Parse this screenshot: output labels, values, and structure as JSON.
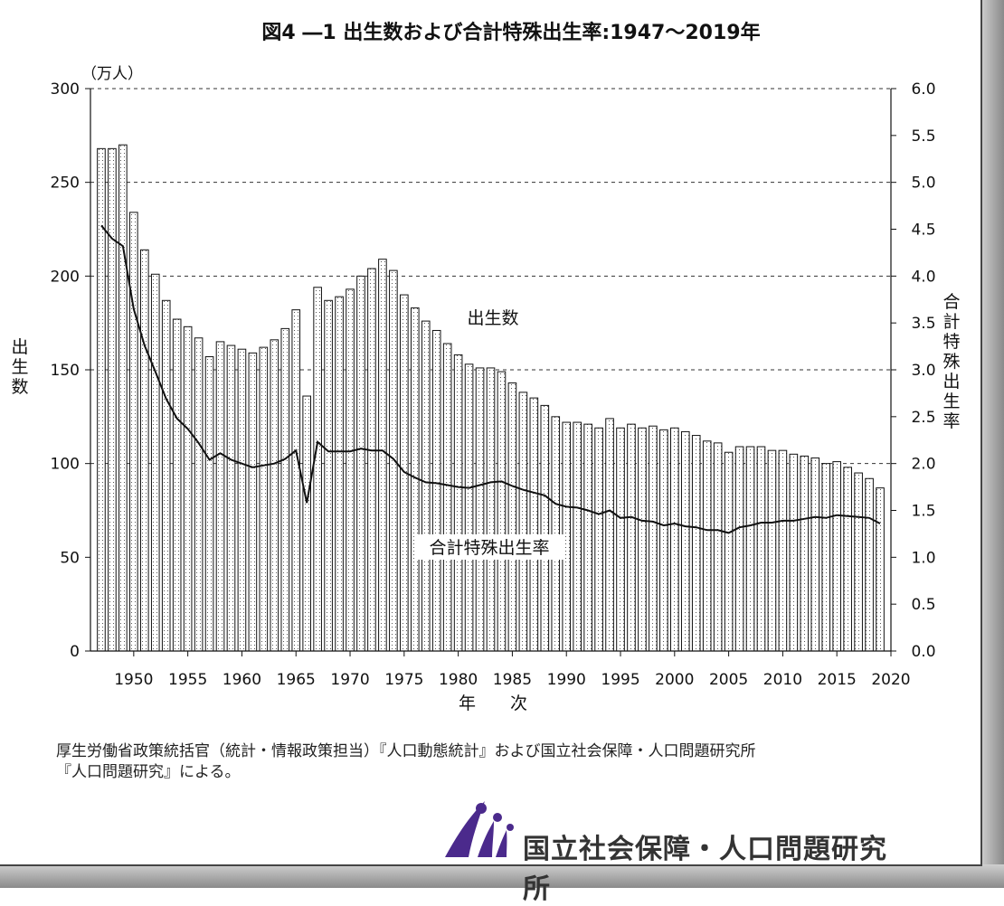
{
  "chart_data": {
    "type": "bar+line",
    "title": "図4 ―1 出生数および合計特殊出生率:1947～2019年",
    "unit_label": "（万人）",
    "ylabel_left": "出生数",
    "ylabel_right": "合計特殊出生率",
    "xlabel": "年　　次",
    "ylim_left": [
      0,
      300
    ],
    "ylim_right": [
      0,
      6.0
    ],
    "xlim": [
      1946,
      2020
    ],
    "left_ticks": [
      "0",
      "50",
      "100",
      "150",
      "200",
      "250",
      "300"
    ],
    "right_ticks": [
      "0.0",
      "0.5",
      "1.0",
      "1.5",
      "2.0",
      "2.5",
      "3.0",
      "3.5",
      "4.0",
      "4.5",
      "5.0",
      "5.5",
      "6.0"
    ],
    "x_ticks": [
      "1950",
      "1955",
      "1960",
      "1965",
      "1970",
      "1975",
      "1980",
      "1985",
      "1990",
      "1995",
      "2000",
      "2005",
      "2010",
      "2015",
      "2020"
    ],
    "grid": "dashed at 100, 150, 200, 250, 300",
    "annotations": {
      "births": "出生数",
      "tfr": "合計特殊出生率"
    },
    "years": [
      1947,
      1948,
      1949,
      1950,
      1951,
      1952,
      1953,
      1954,
      1955,
      1956,
      1957,
      1958,
      1959,
      1960,
      1961,
      1962,
      1963,
      1964,
      1965,
      1966,
      1967,
      1968,
      1969,
      1970,
      1971,
      1972,
      1973,
      1974,
      1975,
      1976,
      1977,
      1978,
      1979,
      1980,
      1981,
      1982,
      1983,
      1984,
      1985,
      1986,
      1987,
      1988,
      1989,
      1990,
      1991,
      1992,
      1993,
      1994,
      1995,
      1996,
      1997,
      1998,
      1999,
      2000,
      2001,
      2002,
      2003,
      2004,
      2005,
      2006,
      2007,
      2008,
      2009,
      2010,
      2011,
      2012,
      2013,
      2014,
      2015,
      2016,
      2017,
      2018,
      2019
    ],
    "series": [
      {
        "name": "出生数",
        "type": "bar",
        "axis": "left",
        "values": [
          268,
          268,
          270,
          234,
          214,
          201,
          187,
          177,
          173,
          167,
          157,
          165,
          163,
          161,
          159,
          162,
          166,
          172,
          182,
          136,
          194,
          187,
          189,
          193,
          200,
          204,
          209,
          203,
          190,
          183,
          176,
          171,
          164,
          158,
          153,
          151,
          151,
          149,
          143,
          138,
          135,
          131,
          125,
          122,
          122,
          121,
          119,
          124,
          119,
          121,
          119,
          120,
          118,
          119,
          117,
          115,
          112,
          111,
          106,
          109,
          109,
          109,
          107,
          107,
          105,
          104,
          103,
          100,
          101,
          98,
          95,
          92,
          87
        ]
      },
      {
        "name": "合計特殊出生率",
        "type": "line",
        "axis": "right",
        "values": [
          4.54,
          4.4,
          4.32,
          3.65,
          3.26,
          2.98,
          2.69,
          2.48,
          2.37,
          2.22,
          2.04,
          2.11,
          2.04,
          2.0,
          1.96,
          1.98,
          2.0,
          2.05,
          2.14,
          1.58,
          2.23,
          2.13,
          2.13,
          2.13,
          2.16,
          2.14,
          2.14,
          2.05,
          1.91,
          1.85,
          1.8,
          1.79,
          1.77,
          1.75,
          1.74,
          1.77,
          1.8,
          1.81,
          1.76,
          1.72,
          1.69,
          1.66,
          1.57,
          1.54,
          1.53,
          1.5,
          1.46,
          1.5,
          1.42,
          1.43,
          1.39,
          1.38,
          1.34,
          1.36,
          1.33,
          1.32,
          1.29,
          1.29,
          1.26,
          1.32,
          1.34,
          1.37,
          1.37,
          1.39,
          1.39,
          1.41,
          1.43,
          1.42,
          1.45,
          1.44,
          1.43,
          1.42,
          1.36
        ]
      }
    ]
  },
  "footer": {
    "source_line1": "厚生労働省政策統括官（統計・情報政策担当）『人口動態統計』および国立社会保障・人口問題研究所",
    "source_line2": "『人口問題研究』による。",
    "logo_text": "国立社会保障・人口問題研究所"
  }
}
